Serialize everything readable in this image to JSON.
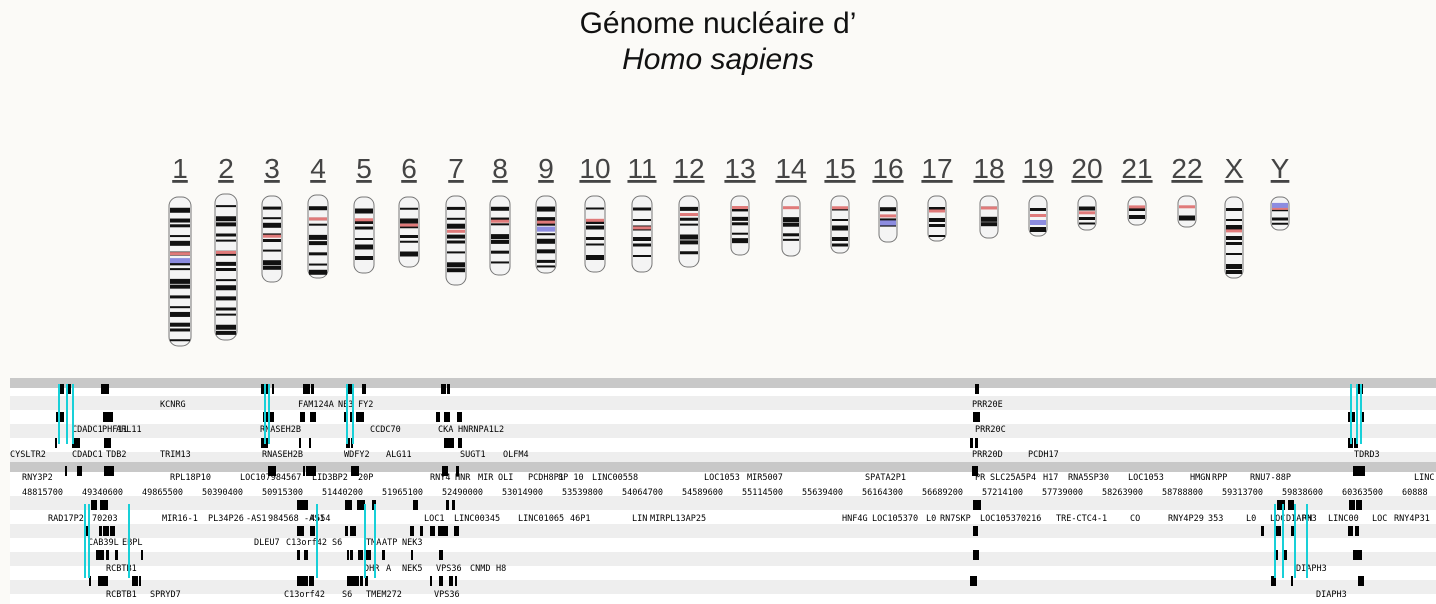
{
  "title": {
    "line1": "Génome nucléaire d’",
    "line2": "Homo sapiens"
  },
  "chromosomes": [
    {
      "label": "1"
    },
    {
      "label": "2"
    },
    {
      "label": "3"
    },
    {
      "label": "4"
    },
    {
      "label": "5"
    },
    {
      "label": "6"
    },
    {
      "label": "7"
    },
    {
      "label": "8"
    },
    {
      "label": "9"
    },
    {
      "label": "10"
    },
    {
      "label": "11"
    },
    {
      "label": "12"
    },
    {
      "label": "13"
    },
    {
      "label": "14"
    },
    {
      "label": "15"
    },
    {
      "label": "16"
    },
    {
      "label": "17"
    },
    {
      "label": "18"
    },
    {
      "label": "19"
    },
    {
      "label": "20"
    },
    {
      "label": "21"
    },
    {
      "label": "22"
    },
    {
      "label": "X"
    },
    {
      "label": "Y"
    }
  ],
  "colors": {
    "centromere": "#e07a7a",
    "heterochromatin": "#8c8ce0",
    "band": "#111111",
    "accent": "#18d0d8"
  },
  "browser": {
    "upper_labels": [
      {
        "row": 0,
        "items": [
          "KCNRG",
          "FAM124A",
          "NE3",
          "FY2",
          "PRR20E"
        ]
      },
      {
        "row": 1,
        "items": [
          "CDADC1",
          "PHF11",
          "ARL11",
          "RNASEH2B",
          "CCDC70",
          "CKA",
          "HNRNPA1L2",
          "PRR20C"
        ]
      },
      {
        "row": 2,
        "items": [
          "CYSLTR2",
          "CDADC1",
          "TDB2",
          "TRIM13",
          "RNASEH2B",
          "WDFY2",
          "ALG11",
          "SUGT1",
          "OLFM4",
          "PRR20D",
          "PCDH17",
          "TDRD3"
        ]
      },
      {
        "row": 3,
        "items": [
          "RNY3P2",
          "RPL18P10",
          "LOC107984567",
          "LID3BP2",
          "20P",
          "RNY4",
          "HNR",
          "MIR",
          "OLI",
          "PCDH8P1",
          "8P 10",
          "LINC00558",
          "LOC1053",
          "MIR5007",
          "SPATA2P1",
          "PR",
          "SLC25A5P4",
          "H17",
          "RNA5SP30",
          "LOC1053",
          "HMGN",
          "RPP",
          "RNU7-88P",
          "LINC"
        ]
      }
    ],
    "positions": [
      "48815700",
      "49340600",
      "49865500",
      "50390400",
      "50915300",
      "51440200",
      "51965100",
      "52490000",
      "53014900",
      "53539800",
      "54064700",
      "54589600",
      "55114500",
      "55639400",
      "56164300",
      "56689200",
      "57214100",
      "57739000",
      "58263900",
      "58788800",
      "59313700",
      "59838600",
      "60363500",
      "60888"
    ],
    "lower_labels": [
      {
        "row": 0,
        "items": [
          "RAD17P2",
          "70203",
          "MIR16-1",
          "PL34P26",
          "-AS1",
          "984568",
          "-AS1",
          "4554",
          "LOC1",
          "LINC00345",
          "LINC01065",
          "46P1",
          "LIN",
          "MI",
          "RPL13AP25",
          "HNF4G",
          "LOC105370",
          "L0",
          "RN7SKP",
          "LOC105370216",
          "TRE-CTC4-1",
          "CO",
          "RNY4P29",
          "353",
          "L0",
          "LOC",
          "DIAPH3",
          "RN",
          "LINC00",
          "LOC",
          "RNY4P31"
        ]
      },
      {
        "row": 1,
        "items": [
          "CAB39L",
          "EBPL",
          "DLEU7",
          "C13orf42",
          "S6",
          "TMA",
          "ATP",
          "NEK3"
        ]
      },
      {
        "row": 2,
        "items": [
          "RCBTB1",
          "DHR",
          "A",
          "NEK5",
          "VPS36",
          "CNMD",
          "H8",
          "DIAPH3"
        ]
      },
      {
        "row": 3,
        "items": [
          "RCBTB1",
          "SPRYD7",
          "C13orf42",
          "S6",
          "TMEM272",
          "VPS36",
          "DIAPH3"
        ]
      }
    ]
  }
}
